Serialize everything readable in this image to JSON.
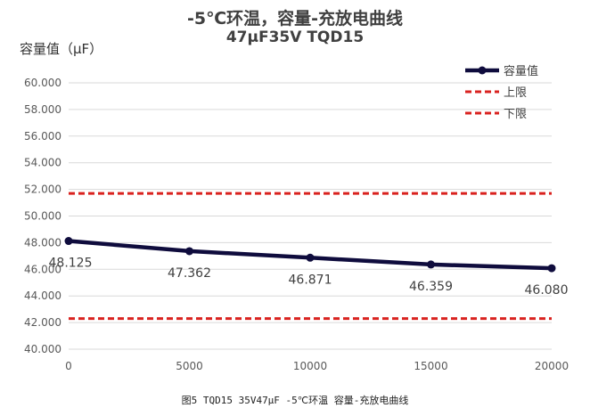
{
  "chart_data": {
    "type": "line",
    "title": "-5℃环温，容量-充放电曲线",
    "subtitle": "47μF35V  TQD15",
    "ylabel": "容量值（μF）",
    "xlabel": "",
    "caption": "图5 TQD15 35V47μF -5℃环温 容量-充放电曲线",
    "x": [
      0,
      5000,
      10000,
      15000,
      20000
    ],
    "xlim": [
      0,
      20000
    ],
    "xticks": [
      0,
      5000,
      10000,
      15000,
      20000
    ],
    "ylim": [
      40,
      60
    ],
    "yticks": [
      "40.000",
      "42.000",
      "44.000",
      "46.000",
      "48.000",
      "50.000",
      "52.000",
      "54.000",
      "56.000",
      "58.000",
      "60.000"
    ],
    "grid": "horizontal",
    "legend": "top-right",
    "series": [
      {
        "name": "容量值",
        "values": [
          48.125,
          47.362,
          46.871,
          46.359,
          46.08
        ],
        "labels": [
          "48.125",
          "47.362",
          "46.871",
          "46.359",
          "46.080"
        ],
        "color": "#0f0c3d",
        "style": "line-marker"
      },
      {
        "name": "上限",
        "values": [
          51.7,
          51.7,
          51.7,
          51.7,
          51.7
        ],
        "color": "#d9221f",
        "style": "dashed"
      },
      {
        "name": "下限",
        "values": [
          42.3,
          42.3,
          42.3,
          42.3,
          42.3
        ],
        "color": "#d9221f",
        "style": "dashed"
      }
    ]
  }
}
